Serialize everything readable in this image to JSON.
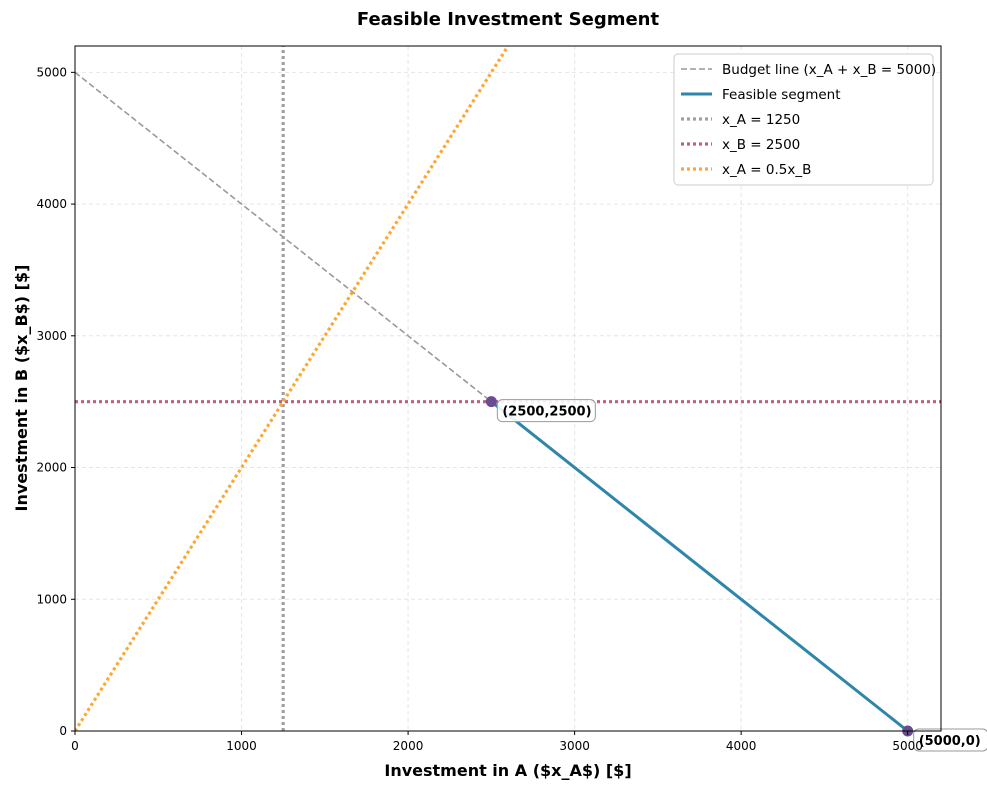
{
  "chart_data": {
    "type": "line",
    "title": "Feasible Investment Segment",
    "xlabel": "Investment in A ($x_A$) [$]",
    "ylabel": "Investment in B ($x_B$) [$]",
    "xlim": [
      0,
      5200
    ],
    "ylim": [
      0,
      5200
    ],
    "xticks": [
      0,
      1000,
      2000,
      3000,
      4000,
      5000
    ],
    "yticks": [
      0,
      1000,
      2000,
      3000,
      4000,
      5000
    ],
    "grid": true,
    "legend_position": "top-right",
    "series": [
      {
        "name": "Budget line (x_A + x_B = 5000)",
        "style": "dashed",
        "color": "#999999",
        "x": [
          0,
          2500
        ],
        "y": [
          5000,
          2500
        ]
      },
      {
        "name": "Feasible segment",
        "style": "solid",
        "color": "#2E86AB",
        "x": [
          2500,
          5000
        ],
        "y": [
          2500,
          0
        ]
      },
      {
        "name": "x_A = 1250",
        "style": "dotted",
        "color": "#A0A0A0",
        "x": [
          1250,
          1250
        ],
        "y": [
          0,
          5200
        ]
      },
      {
        "name": "x_B = 2500",
        "style": "dotted",
        "color": "#C0607A",
        "x": [
          0,
          5200
        ],
        "y": [
          2500,
          2500
        ]
      },
      {
        "name": "x_A = 0.5x_B",
        "style": "dotted",
        "color": "#FFA630",
        "x": [
          0,
          2600
        ],
        "y": [
          0,
          5200
        ]
      }
    ],
    "points": [
      {
        "x": 2500,
        "y": 2500,
        "label": "(2500,2500)",
        "color": "#6A4C93"
      },
      {
        "x": 5000,
        "y": 0,
        "label": "(5000,0)",
        "color": "#6A4C93"
      }
    ]
  }
}
